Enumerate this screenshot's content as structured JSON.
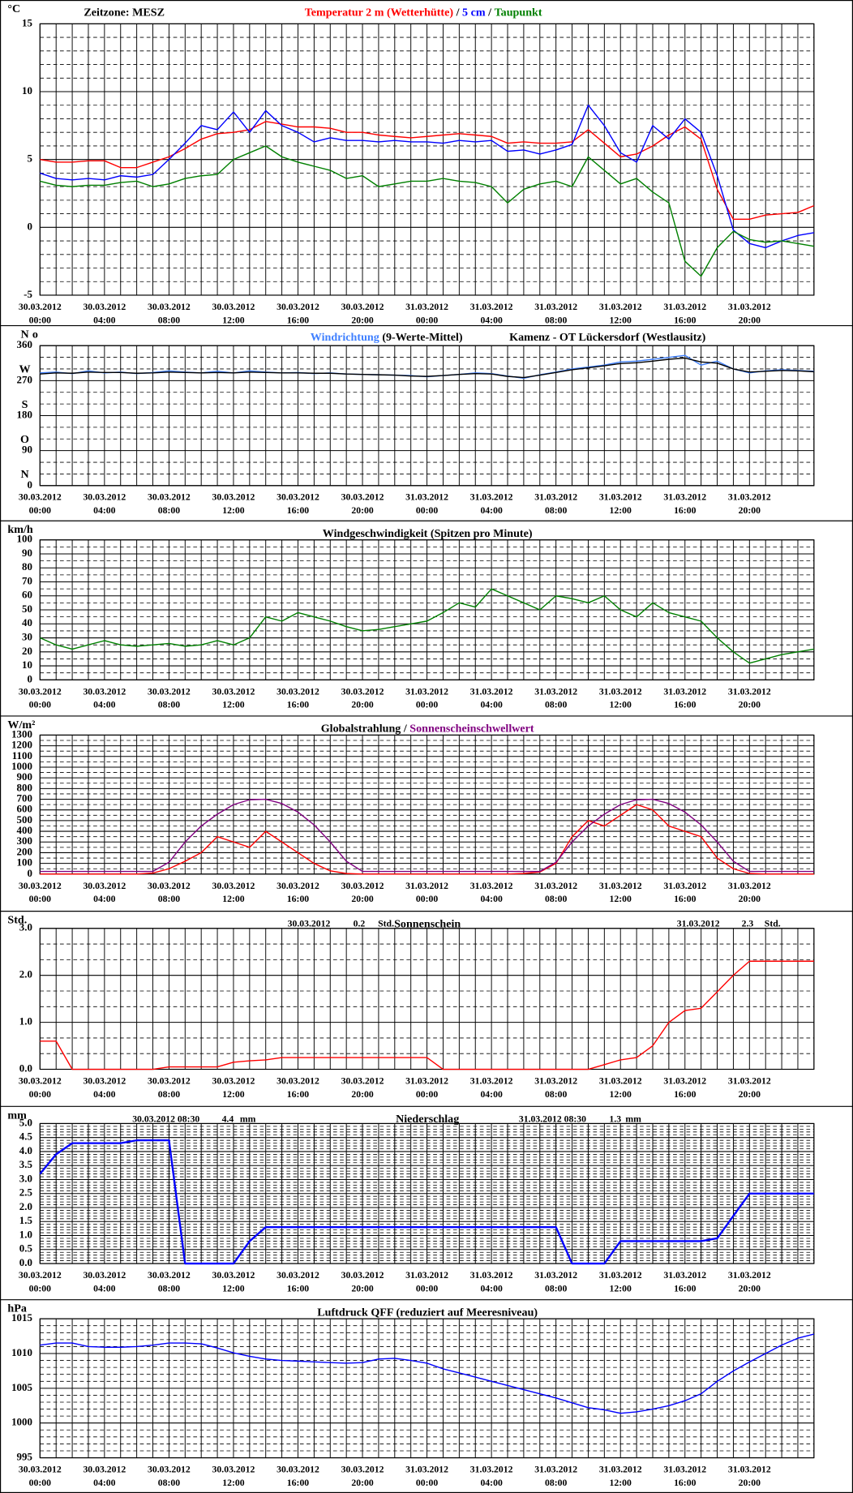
{
  "time_axis": {
    "xlim": [
      0,
      48
    ],
    "grid_step": 1,
    "xticks": [
      {
        "value": 0,
        "label": "00:00",
        "date": "30.03.2012"
      },
      {
        "value": 4,
        "label": "04:00",
        "date": "30.03.2012"
      },
      {
        "value": 8,
        "label": "08:00",
        "date": "30.03.2012"
      },
      {
        "value": 12,
        "label": "12:00",
        "date": "30.03.2012"
      },
      {
        "value": 16,
        "label": "16:00",
        "date": "30.03.2012"
      },
      {
        "value": 20,
        "label": "20:00",
        "date": "30.03.2012"
      },
      {
        "value": 24,
        "label": "00:00",
        "date": "31.03.2012"
      },
      {
        "value": 28,
        "label": "04:00",
        "date": "31.03.2012"
      },
      {
        "value": 32,
        "label": "08:00",
        "date": "31.03.2012"
      },
      {
        "value": 36,
        "label": "12:00",
        "date": "31.03.2012"
      },
      {
        "value": 40,
        "label": "16:00",
        "date": "31.03.2012"
      },
      {
        "value": 44,
        "label": "20:00",
        "date": "31.03.2012"
      }
    ],
    "x": [
      0,
      1,
      2,
      3,
      4,
      5,
      6,
      7,
      8,
      9,
      10,
      11,
      12,
      13,
      14,
      15,
      16,
      17,
      18,
      19,
      20,
      21,
      22,
      23,
      24,
      25,
      26,
      27,
      28,
      29,
      30,
      31,
      32,
      33,
      34,
      35,
      36,
      37,
      38,
      39,
      40,
      41,
      42,
      43,
      44,
      45,
      46,
      47,
      48
    ]
  },
  "chart_data": [
    {
      "type": "line",
      "note": "Zeitzone: MESZ",
      "y_label": "°C",
      "legend_separator": "/",
      "ylim": [
        -5,
        15
      ],
      "yticks": [
        -5,
        0,
        5,
        10,
        15
      ],
      "y_minor": 5,
      "series": [
        {
          "name": "Temperatur 2 m (Wetterhütte)",
          "color": "#ff0000",
          "values": [
            5.0,
            4.8,
            4.8,
            4.9,
            4.9,
            4.4,
            4.4,
            4.8,
            5.2,
            5.8,
            6.5,
            6.9,
            7.0,
            7.2,
            7.8,
            7.6,
            7.4,
            7.4,
            7.3,
            7.0,
            7.0,
            6.8,
            6.7,
            6.6,
            6.7,
            6.8,
            6.9,
            6.8,
            6.7,
            6.2,
            6.3,
            6.2,
            6.2,
            6.3,
            7.2,
            6.2,
            5.2,
            5.4,
            6.0,
            6.8,
            7.4,
            6.5,
            2.8,
            0.6,
            0.6,
            0.9,
            1.0,
            1.1,
            1.6
          ]
        },
        {
          "name": "5 cm",
          "color": "#0000ff",
          "values": [
            4.0,
            3.6,
            3.5,
            3.6,
            3.5,
            3.8,
            3.7,
            3.9,
            5.0,
            6.2,
            7.5,
            7.2,
            8.5,
            7.0,
            8.6,
            7.5,
            7.0,
            6.3,
            6.6,
            6.4,
            6.4,
            6.3,
            6.4,
            6.3,
            6.3,
            6.2,
            6.4,
            6.3,
            6.4,
            5.6,
            5.7,
            5.4,
            5.7,
            6.1,
            9.0,
            7.5,
            5.5,
            4.8,
            7.5,
            6.5,
            8.0,
            7.0,
            3.8,
            -0.2,
            -1.2,
            -1.5,
            -1.0,
            -0.6,
            -0.4
          ]
        },
        {
          "name": "Taupunkt",
          "color": "#008000",
          "values": [
            3.4,
            3.1,
            3.0,
            3.1,
            3.1,
            3.3,
            3.4,
            3.0,
            3.2,
            3.6,
            3.8,
            3.9,
            5.0,
            5.5,
            6.0,
            5.2,
            4.8,
            4.5,
            4.2,
            3.6,
            3.8,
            3.0,
            3.2,
            3.4,
            3.4,
            3.6,
            3.4,
            3.3,
            3.0,
            1.8,
            2.8,
            3.2,
            3.4,
            3.0,
            5.2,
            4.2,
            3.2,
            3.6,
            2.6,
            1.8,
            -2.5,
            -3.6,
            -1.5,
            -0.3,
            -0.9,
            -1.1,
            -1.0,
            -1.2,
            -1.4
          ]
        }
      ]
    },
    {
      "type": "line",
      "subtitle": "Kamenz - OT Lückersdorf (Westlausitz)",
      "y_label": "o",
      "ylim": [
        0,
        360
      ],
      "yticks": [
        0,
        90,
        180,
        270,
        360
      ],
      "y_minor": 3,
      "direction_labels": [
        {
          "value": 0,
          "label": "N"
        },
        {
          "value": 90,
          "label": "O"
        },
        {
          "value": 180,
          "label": "S"
        },
        {
          "value": 270,
          "label": "W"
        },
        {
          "value": 360,
          "label": "N"
        }
      ],
      "series": [
        {
          "name": "Windrichtung",
          "color": "#4080ff",
          "values": [
            290,
            292,
            288,
            295,
            290,
            292,
            288,
            291,
            295,
            292,
            290,
            294,
            290,
            295,
            292,
            290,
            291,
            288,
            290,
            287,
            286,
            285,
            284,
            283,
            280,
            283,
            286,
            290,
            288,
            282,
            276,
            285,
            292,
            300,
            305,
            310,
            318,
            320,
            325,
            330,
            335,
            310,
            320,
            300,
            290,
            295,
            298,
            296,
            294
          ]
        },
        {
          "name": "(9-Werte-Mittel)",
          "color": "#000000",
          "values": [
            287,
            290,
            289,
            292,
            291,
            291,
            289,
            290,
            292,
            291,
            290,
            291,
            290,
            292,
            291,
            290,
            290,
            289,
            289,
            287,
            286,
            285,
            284,
            282,
            281,
            283,
            286,
            288,
            287,
            281,
            278,
            284,
            291,
            298,
            303,
            308,
            314,
            316,
            320,
            325,
            328,
            318,
            315,
            300,
            292,
            294,
            296,
            295,
            293
          ]
        }
      ]
    },
    {
      "type": "line",
      "title": "Windgeschwindigkeit (Spitzen pro Minute)",
      "y_label": "km/h",
      "ylim": [
        0,
        100
      ],
      "yticks": [
        0,
        10,
        20,
        30,
        40,
        50,
        60,
        70,
        80,
        90,
        100
      ],
      "y_minor": 2,
      "series": [
        {
          "name": "Windgeschwindigkeit",
          "color": "#008000",
          "values": [
            30,
            25,
            22,
            25,
            28,
            25,
            24,
            25,
            26,
            24,
            25,
            28,
            25,
            30,
            45,
            42,
            48,
            45,
            42,
            38,
            35,
            36,
            38,
            40,
            42,
            48,
            55,
            52,
            65,
            60,
            55,
            50,
            60,
            58,
            55,
            60,
            50,
            45,
            55,
            48,
            45,
            42,
            30,
            20,
            12,
            15,
            18,
            20,
            22
          ]
        }
      ]
    },
    {
      "type": "line",
      "legend_separator": "/",
      "y_label": "W/m²",
      "ylim": [
        0,
        1300
      ],
      "yticks": [
        0,
        100,
        200,
        300,
        400,
        500,
        600,
        700,
        800,
        900,
        1000,
        1100,
        1200,
        1300
      ],
      "y_minor": 2,
      "series": [
        {
          "name": "Globalstrahlung",
          "color": "#ff0000",
          "legend_color": "#000000",
          "values": [
            0,
            0,
            0,
            0,
            0,
            0,
            0,
            10,
            50,
            120,
            200,
            350,
            300,
            250,
            400,
            300,
            200,
            100,
            30,
            5,
            0,
            0,
            0,
            0,
            0,
            0,
            0,
            0,
            0,
            0,
            5,
            20,
            100,
            350,
            500,
            450,
            550,
            650,
            600,
            450,
            400,
            350,
            150,
            50,
            5,
            0,
            0,
            0,
            0
          ]
        },
        {
          "name": "Sonnenscheinschwellwert",
          "color": "#800080",
          "values": [
            25,
            25,
            25,
            25,
            25,
            25,
            25,
            25,
            110,
            300,
            450,
            560,
            650,
            695,
            700,
            660,
            580,
            460,
            300,
            120,
            25,
            25,
            25,
            25,
            25,
            25,
            25,
            25,
            25,
            25,
            25,
            25,
            110,
            300,
            450,
            560,
            650,
            695,
            700,
            660,
            580,
            460,
            300,
            120,
            25,
            25,
            25,
            25,
            25
          ]
        }
      ]
    },
    {
      "type": "line",
      "title": "Sonnenschein",
      "y_label": "Std.",
      "annotations": [
        "30.03.2012",
        "0.2",
        "Std.",
        "31.03.2012",
        "2.3",
        "Std."
      ],
      "ylim": [
        0,
        3
      ],
      "yticks": [
        {
          "value": 0,
          "label": "0.0"
        },
        {
          "value": 1,
          "label": "1.0"
        },
        {
          "value": 2,
          "label": "2.0"
        },
        {
          "value": 3,
          "label": "3.0"
        }
      ],
      "y_minor": 3,
      "series": [
        {
          "name": "Sonnenschein",
          "color": "#ff0000",
          "values": [
            0.6,
            0.6,
            0,
            0,
            0,
            0,
            0,
            0,
            0.05,
            0.05,
            0.05,
            0.05,
            0.15,
            0.18,
            0.2,
            0.25,
            0.25,
            0.25,
            0.25,
            0.25,
            0.25,
            0.25,
            0.25,
            0.25,
            0.25,
            0,
            0,
            0,
            0,
            0,
            0,
            0,
            0,
            0,
            0,
            0.1,
            0.2,
            0.25,
            0.5,
            1.0,
            1.25,
            1.3,
            1.65,
            2.0,
            2.3,
            2.3,
            2.3,
            2.3,
            2.3
          ]
        }
      ]
    },
    {
      "type": "line",
      "title": "Niederschlag",
      "y_label": "mm",
      "annotations": [
        "30.03.2012 08:30",
        "4.4",
        "mm",
        "31.03.2012 08:30",
        "1.3",
        "mm"
      ],
      "ylim": [
        0,
        5
      ],
      "yticks": [
        {
          "value": 0,
          "label": "0.0"
        },
        {
          "value": 0.5,
          "label": "0.5"
        },
        {
          "value": 1,
          "label": "1.0"
        },
        {
          "value": 1.5,
          "label": "1.5"
        },
        {
          "value": 2,
          "label": "2.0"
        },
        {
          "value": 2.5,
          "label": "2.5"
        },
        {
          "value": 3,
          "label": "3.0"
        },
        {
          "value": 3.5,
          "label": "3.5"
        },
        {
          "value": 4,
          "label": "4.0"
        },
        {
          "value": 4.5,
          "label": "4.5"
        },
        {
          "value": 5,
          "label": "5.0"
        }
      ],
      "y_minor": 5,
      "series": [
        {
          "name": "Niederschlag",
          "color": "#0000ff",
          "values": [
            3.2,
            3.9,
            4.3,
            4.3,
            4.3,
            4.3,
            4.4,
            4.4,
            4.4,
            0,
            0,
            0,
            0,
            0.8,
            1.3,
            1.3,
            1.3,
            1.3,
            1.3,
            1.3,
            1.3,
            1.3,
            1.3,
            1.3,
            1.3,
            1.3,
            1.3,
            1.3,
            1.3,
            1.3,
            1.3,
            1.3,
            1.3,
            0,
            0,
            0,
            0.8,
            0.8,
            0.8,
            0.8,
            0.8,
            0.8,
            0.9,
            1.7,
            2.5,
            2.5,
            2.5,
            2.5,
            2.5
          ]
        }
      ]
    },
    {
      "type": "line",
      "title": "Luftdruck QFF (reduziert auf Meeresniveau)",
      "y_label": "hPa",
      "ylim": [
        995,
        1015
      ],
      "yticks": [
        995,
        1000,
        1005,
        1010,
        1015
      ],
      "y_minor": 5,
      "series": [
        {
          "name": "Luftdruck",
          "color": "#0000ff",
          "values": [
            1011.2,
            1011.5,
            1011.5,
            1011.0,
            1010.9,
            1010.9,
            1011.0,
            1011.2,
            1011.5,
            1011.5,
            1011.4,
            1010.8,
            1010.1,
            1009.6,
            1009.2,
            1009.0,
            1008.9,
            1008.8,
            1008.7,
            1008.6,
            1008.7,
            1009.2,
            1009.3,
            1009.0,
            1008.6,
            1007.8,
            1007.2,
            1006.6,
            1006.0,
            1005.4,
            1004.8,
            1004.2,
            1003.6,
            1002.9,
            1002.2,
            1001.9,
            1001.4,
            1001.6,
            1002.0,
            1002.5,
            1003.2,
            1004.2,
            1006.0,
            1007.5,
            1008.8,
            1010.0,
            1011.2,
            1012.2,
            1012.8
          ]
        }
      ]
    }
  ]
}
